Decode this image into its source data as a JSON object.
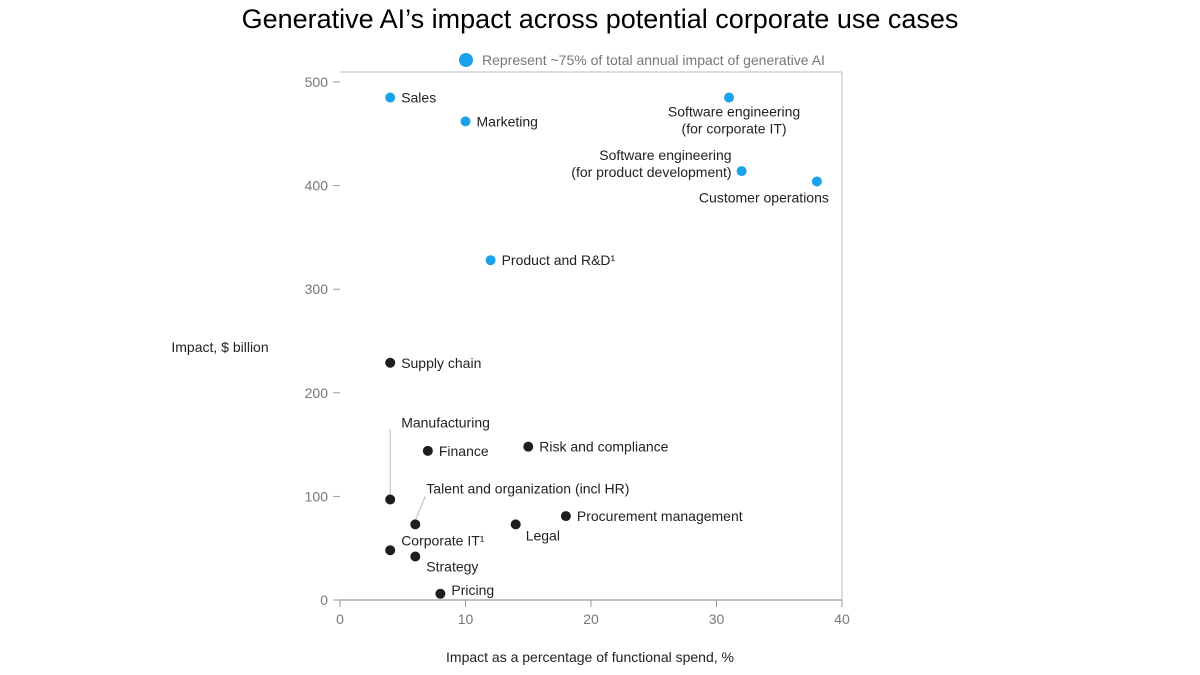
{
  "chart_data": {
    "type": "scatter",
    "title": "Generative AI’s impact across potential corporate use cases",
    "xlabel": "Impact as a percentage of functional spend, %",
    "ylabel": "Impact, $ billion",
    "xlim": [
      0,
      40
    ],
    "ylim": [
      0,
      500
    ],
    "xticks": [
      0,
      10,
      20,
      30,
      40
    ],
    "yticks": [
      0,
      100,
      200,
      300,
      400,
      500
    ],
    "grid": false,
    "legend": {
      "label": "Represent ~75% of total annual impact of generative AI",
      "placement": "top",
      "color": "#1aa3ea"
    },
    "colors": {
      "highlight": "#1aa3ea",
      "other": "#1e1e1e"
    },
    "points": [
      {
        "label": "Sales",
        "x": 4,
        "y": 485,
        "highlight": true
      },
      {
        "label": "Marketing",
        "x": 10,
        "y": 462,
        "highlight": true
      },
      {
        "label": "Software engineering\n(for corporate IT)",
        "x": 31,
        "y": 485,
        "highlight": true
      },
      {
        "label": "Software engineering\n(for product development)",
        "x": 32,
        "y": 414,
        "highlight": true
      },
      {
        "label": "Customer operations",
        "x": 38,
        "y": 404,
        "highlight": true
      },
      {
        "label": "Product and R&D¹",
        "x": 12,
        "y": 328,
        "highlight": true
      },
      {
        "label": "Supply chain",
        "x": 4,
        "y": 229,
        "highlight": false
      },
      {
        "label": "Manufacturing",
        "x": 4,
        "y": 97,
        "highlight": false
      },
      {
        "label": "Finance",
        "x": 7,
        "y": 144,
        "highlight": false
      },
      {
        "label": "Risk and compliance",
        "x": 15,
        "y": 148,
        "highlight": false
      },
      {
        "label": "Talent and organization (incl HR)",
        "x": 6,
        "y": 73,
        "highlight": false
      },
      {
        "label": "Legal",
        "x": 14,
        "y": 73,
        "highlight": false
      },
      {
        "label": "Procurement management",
        "x": 18,
        "y": 81,
        "highlight": false
      },
      {
        "label": "Corporate IT¹",
        "x": 4,
        "y": 48,
        "highlight": false
      },
      {
        "label": "Strategy",
        "x": 6,
        "y": 42,
        "highlight": false
      },
      {
        "label": "Pricing",
        "x": 8,
        "y": 6,
        "highlight": false
      }
    ]
  }
}
